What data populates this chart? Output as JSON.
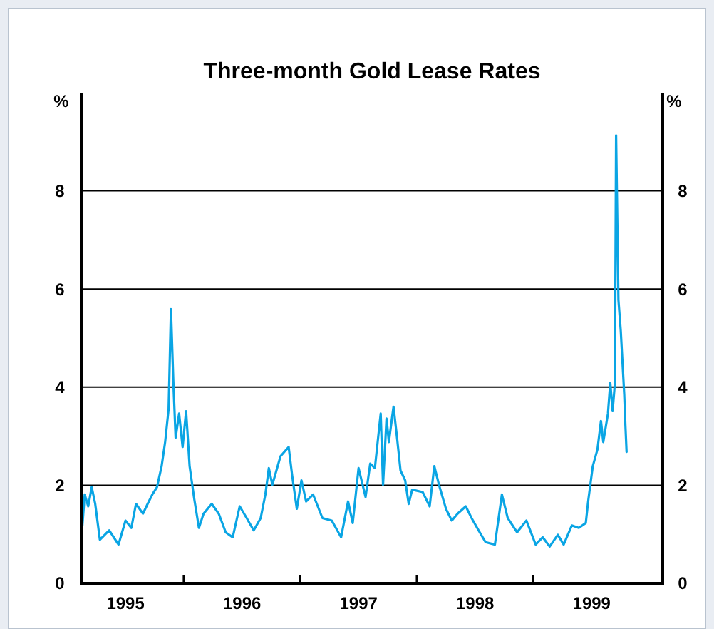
{
  "chart_data": {
    "type": "line",
    "title": "Three-month Gold Lease Rates",
    "ylabel": "%",
    "y2label": "%",
    "xlim": [
      1995.12,
      2000.11
    ],
    "xticks": [
      {
        "value": 1995.5,
        "label": "1995"
      },
      {
        "value": 1996,
        "label": null
      },
      {
        "value": 1996.5,
        "label": "1996"
      },
      {
        "value": 1997,
        "label": null
      },
      {
        "value": 1997.5,
        "label": "1997"
      },
      {
        "value": 1998,
        "label": null
      },
      {
        "value": 1998.5,
        "label": "1998"
      },
      {
        "value": 1999,
        "label": null
      },
      {
        "value": 1999.5,
        "label": "1999"
      }
    ],
    "ylim": [
      0,
      10
    ],
    "yticks": [
      0,
      2,
      4,
      6,
      8
    ],
    "y2lim": [
      0,
      10
    ],
    "y2ticks": [
      0,
      2,
      4,
      6,
      8
    ],
    "grid": "y",
    "series": [
      {
        "color": "#0aa5e4",
        "x": [
          1995.13,
          1995.15,
          1995.18,
          1995.21,
          1995.24,
          1995.28,
          1995.36,
          1995.44,
          1995.5,
          1995.55,
          1995.59,
          1995.65,
          1995.69,
          1995.73,
          1995.77,
          1995.81,
          1995.84,
          1995.87,
          1995.89,
          1995.91,
          1995.93,
          1995.96,
          1995.99,
          1996.02,
          1996.05,
          1996.09,
          1996.13,
          1996.17,
          1996.24,
          1996.3,
          1996.36,
          1996.42,
          1996.48,
          1996.54,
          1996.6,
          1996.66,
          1996.7,
          1996.73,
          1996.76,
          1996.83,
          1996.9,
          1996.93,
          1996.97,
          1997.01,
          1997.05,
          1997.11,
          1997.19,
          1997.27,
          1997.35,
          1997.41,
          1997.45,
          1997.5,
          1997.56,
          1997.6,
          1997.64,
          1997.69,
          1997.71,
          1997.74,
          1997.76,
          1997.8,
          1997.83,
          1997.86,
          1997.9,
          1997.93,
          1997.96,
          1998.05,
          1998.11,
          1998.15,
          1998.19,
          1998.25,
          1998.3,
          1998.35,
          1998.42,
          1998.47,
          1998.53,
          1998.59,
          1998.67,
          1998.73,
          1998.78,
          1998.86,
          1998.94,
          1999.02,
          1999.08,
          1999.14,
          1999.21,
          1999.26,
          1999.33,
          1999.39,
          1999.45,
          1999.47,
          1999.51,
          1999.55,
          1999.58,
          1999.6,
          1999.64,
          1999.66,
          1999.68,
          1999.7,
          1999.71,
          1999.73,
          1999.75,
          1999.78,
          1999.79,
          1999.8
        ],
        "values": [
          1.18,
          1.81,
          1.57,
          1.96,
          1.62,
          0.89,
          1.08,
          0.79,
          1.28,
          1.13,
          1.62,
          1.42,
          1.62,
          1.81,
          1.96,
          2.39,
          2.88,
          3.56,
          5.59,
          4.14,
          2.97,
          3.46,
          2.78,
          3.51,
          2.39,
          1.72,
          1.13,
          1.42,
          1.62,
          1.42,
          1.04,
          0.94,
          1.57,
          1.33,
          1.08,
          1.33,
          1.81,
          2.35,
          2.01,
          2.59,
          2.78,
          2.2,
          1.52,
          2.1,
          1.67,
          1.81,
          1.33,
          1.28,
          0.94,
          1.67,
          1.23,
          2.35,
          1.76,
          2.44,
          2.35,
          3.46,
          2.01,
          3.36,
          2.88,
          3.6,
          2.97,
          2.3,
          2.1,
          1.62,
          1.91,
          1.86,
          1.57,
          2.39,
          2.01,
          1.52,
          1.28,
          1.42,
          1.57,
          1.33,
          1.08,
          0.84,
          0.79,
          1.81,
          1.33,
          1.04,
          1.28,
          0.79,
          0.94,
          0.75,
          0.99,
          0.79,
          1.18,
          1.13,
          1.23,
          1.67,
          2.39,
          2.73,
          3.31,
          2.88,
          3.46,
          4.09,
          3.51,
          4.09,
          9.13,
          5.78,
          5.15,
          3.85,
          3.22,
          2.68
        ]
      }
    ]
  }
}
